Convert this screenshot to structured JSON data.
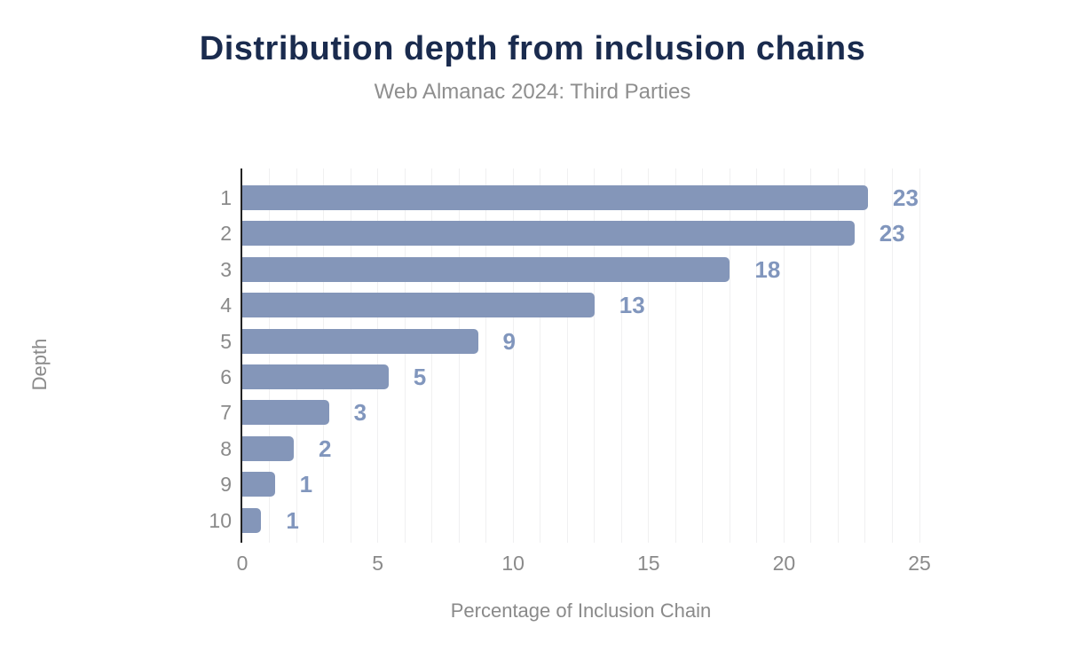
{
  "chart_data": {
    "type": "bar",
    "orientation": "horizontal",
    "title": "Distribution depth from inclusion chains",
    "subtitle": "Web Almanac 2024: Third Parties",
    "xlabel": "Percentage of Inclusion Chain",
    "ylabel": "Depth",
    "categories": [
      "1",
      "2",
      "3",
      "4",
      "5",
      "6",
      "7",
      "8",
      "9",
      "10"
    ],
    "values": [
      23.1,
      22.6,
      18,
      13,
      8.7,
      5.4,
      3.2,
      1.9,
      1.2,
      0.7
    ],
    "bar_labels": [
      "23",
      "23",
      "18",
      "13",
      "9",
      "5",
      "3",
      "2",
      "1",
      "1"
    ],
    "xlim": [
      0,
      25
    ],
    "xticks": [
      "0",
      "5",
      "10",
      "15",
      "20",
      "25"
    ],
    "xtick_values": [
      0,
      5,
      10,
      15,
      20,
      25
    ],
    "grid_interval": 1,
    "grid": "vertical",
    "legend_position": "none",
    "colors": {
      "bar": "#8496b9",
      "value_label": "#8196bd",
      "title": "#1a2b4e",
      "subtitle": "#8e8e8e",
      "tick_label": "#8a8a8a",
      "axis_title": "#8a8a8a",
      "gridline": "#f0f0f1",
      "axis_line": "#222222",
      "background": "#ffffff"
    }
  }
}
